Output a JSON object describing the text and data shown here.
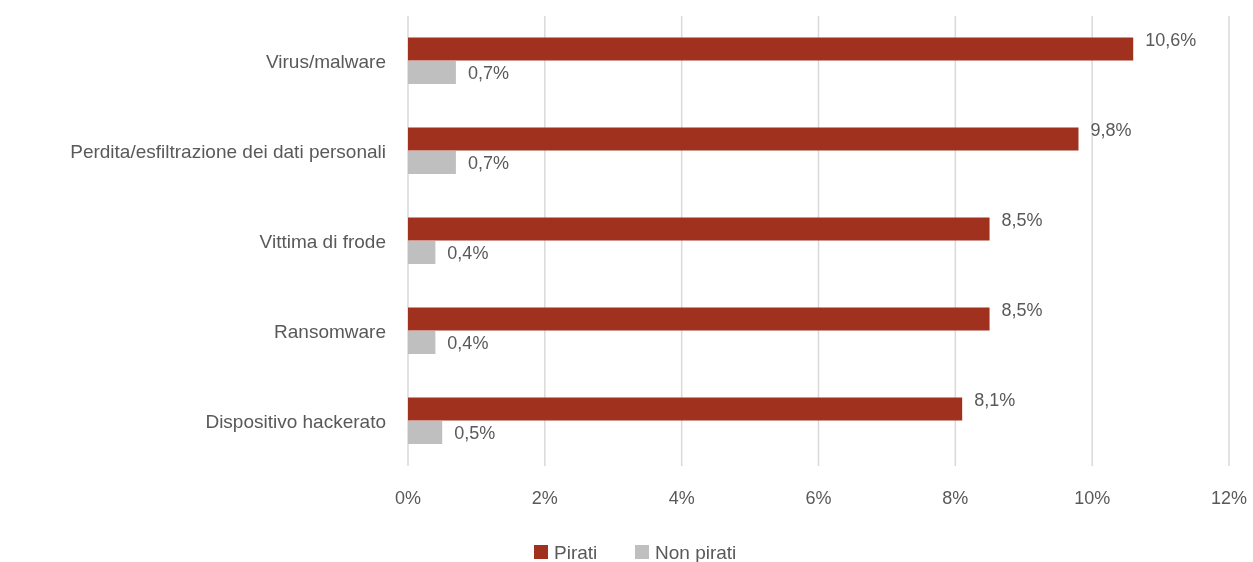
{
  "chart_data": {
    "type": "bar",
    "orientation": "horizontal",
    "categories": [
      "Virus/malware",
      "Perdita/esfiltrazione dei dati personali",
      "Vittima di frode",
      "Ransomware",
      "Dispositivo hackerato"
    ],
    "series": [
      {
        "name": "Pirati",
        "color": "#a0311f",
        "values": [
          10.6,
          9.8,
          8.5,
          8.5,
          8.1
        ],
        "value_labels": [
          "10,6%",
          "9,8%",
          "8,5%",
          "8,5%",
          "8,1%"
        ]
      },
      {
        "name": "Non pirati",
        "color": "#bfbfbf",
        "values": [
          0.7,
          0.7,
          0.4,
          0.4,
          0.5
        ],
        "value_labels": [
          "0,7%",
          "0,7%",
          "0,4%",
          "0,4%",
          "0,5%"
        ]
      }
    ],
    "xlim": [
      0,
      12
    ],
    "xticks": [
      {
        "value": 0,
        "label": "0%"
      },
      {
        "value": 2,
        "label": "2%"
      },
      {
        "value": 4,
        "label": "4%"
      },
      {
        "value": 6,
        "label": "6%"
      },
      {
        "value": 8,
        "label": "8%"
      },
      {
        "value": 10,
        "label": "10%"
      },
      {
        "value": 12,
        "label": "12%"
      }
    ],
    "grid": "x",
    "legend": "bottom"
  }
}
